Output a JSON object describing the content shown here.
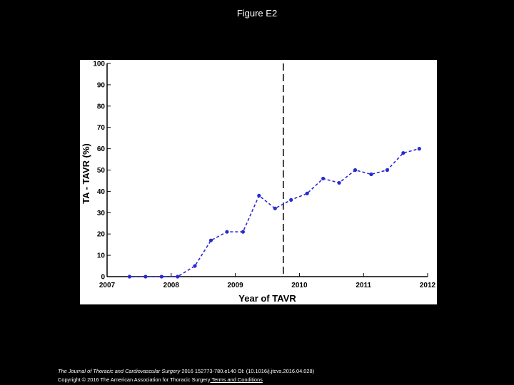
{
  "slide": {
    "title": "Figure E2"
  },
  "chart_data": {
    "type": "line",
    "title": "",
    "xlabel": "Year of TAVR",
    "ylabel": "TA - TAVR (%)",
    "xlim": [
      2007,
      2012
    ],
    "ylim": [
      0,
      100
    ],
    "x_ticks": [
      "2007",
      "2008",
      "2009",
      "2010",
      "2011",
      "2012"
    ],
    "y_ticks": [
      "0",
      "10",
      "20",
      "30",
      "40",
      "50",
      "60",
      "70",
      "80",
      "90",
      "100"
    ],
    "grid": false,
    "line_style": "dashed",
    "colors": {
      "series": "#2a2ad0",
      "vline": "#444444"
    },
    "series": [
      {
        "name": "TA-TAVR",
        "x": [
          2007.35,
          2007.6,
          2007.85,
          2008.1,
          2008.37,
          2008.62,
          2008.87,
          2009.12,
          2009.37,
          2009.62,
          2009.87,
          2010.12,
          2010.37,
          2010.62,
          2010.87,
          2011.12,
          2011.37,
          2011.62,
          2011.87
        ],
        "y": [
          0,
          0,
          0,
          0,
          5,
          17,
          21,
          21,
          38,
          32,
          36,
          39,
          46,
          44,
          50,
          48,
          50,
          58,
          60
        ]
      }
    ],
    "vertical_line": {
      "x": 2009.75,
      "style": "dashed"
    }
  },
  "footer": {
    "journal": "The Journal of Thoracic and Cardiovascular Surgery",
    "citation": " 2016 152773-780.e140 OI: (10.1016/j.jtcvs.2016.04.028)",
    "copyright": "Copyright © 2016 The American Association for Thoracic Surgery",
    "terms_link": " Terms and Conditions"
  }
}
